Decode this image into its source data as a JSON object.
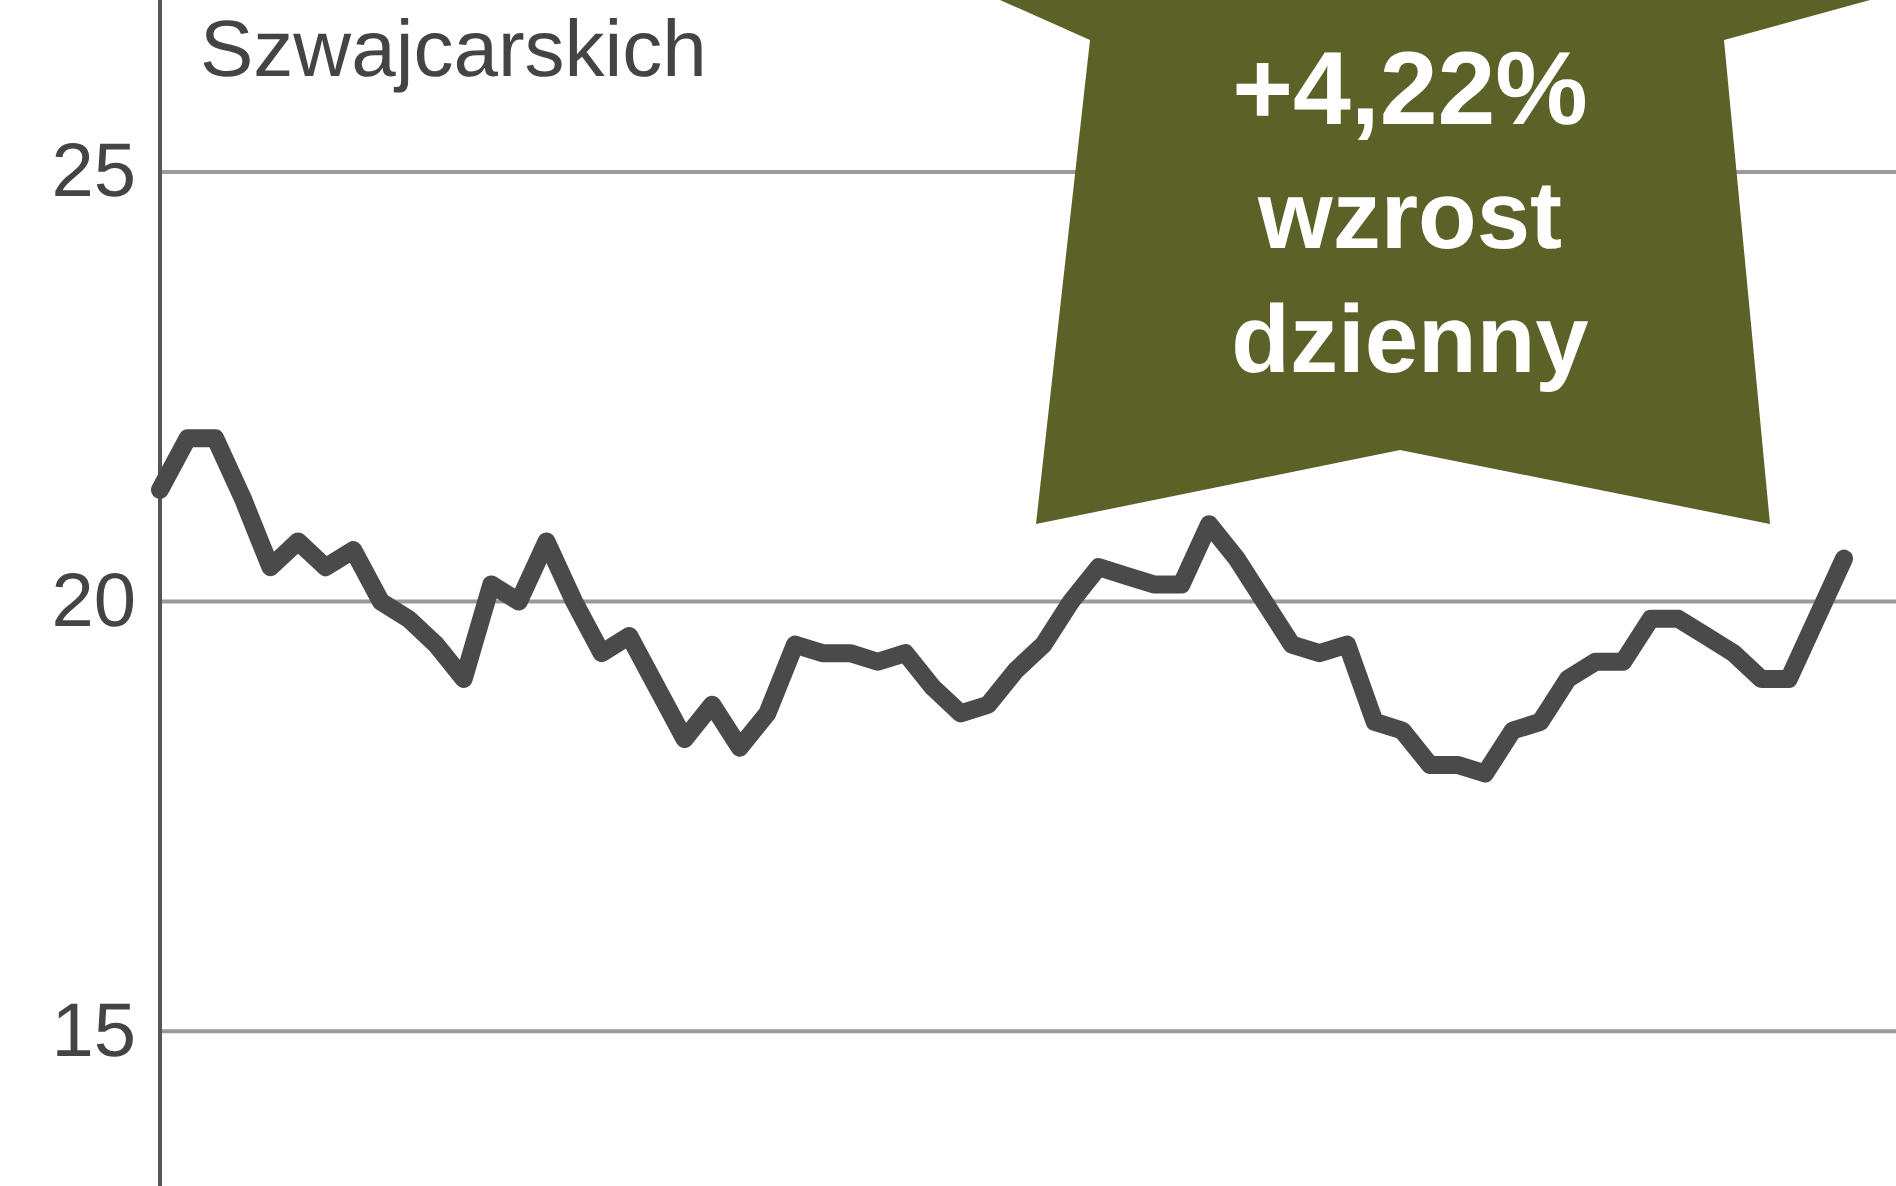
{
  "chart_data": {
    "type": "line",
    "title": "Szwajcarskich",
    "annotations": [
      "+4,22%",
      "wzrost",
      "dzienny"
    ],
    "categories": [
      null,
      null,
      null,
      null,
      null,
      null,
      null,
      null,
      null,
      null,
      null,
      null,
      null,
      null,
      null,
      null,
      null,
      null,
      null,
      null,
      null,
      null,
      null,
      null,
      null,
      null,
      null,
      null,
      null,
      null,
      null,
      null,
      null,
      null,
      null,
      null,
      null,
      null,
      null,
      null,
      null,
      null,
      null,
      null,
      null,
      null,
      null,
      null,
      null,
      null,
      null,
      null,
      null,
      null,
      null,
      null,
      null,
      null,
      null,
      null,
      null,
      null
    ],
    "series": [
      {
        "color": "#4a4a4a",
        "values": [
          21.3,
          21.9,
          21.9,
          21.2,
          20.4,
          20.7,
          20.4,
          20.6,
          20.0,
          19.8,
          19.5,
          19.1,
          20.2,
          20.0,
          20.7,
          20.0,
          19.4,
          19.6,
          19.0,
          18.4,
          18.8,
          18.3,
          18.7,
          19.5,
          19.4,
          19.4,
          19.3,
          19.4,
          19.0,
          18.7,
          18.8,
          19.2,
          19.5,
          20.0,
          20.4,
          20.3,
          20.2,
          20.2,
          20.9,
          20.5,
          20.0,
          19.5,
          19.4,
          19.5,
          18.6,
          18.5,
          18.1,
          18.1,
          18.0,
          18.5,
          18.6,
          19.1,
          19.3,
          19.3,
          19.8,
          19.8,
          19.6,
          19.4,
          19.1,
          19.1,
          19.8,
          20.5
        ]
      }
    ],
    "ylim": [
      13.2,
      27
    ],
    "yticks": [
      15,
      20,
      25
    ],
    "grid": "y",
    "marker": "none",
    "line_style": "solid"
  }
}
